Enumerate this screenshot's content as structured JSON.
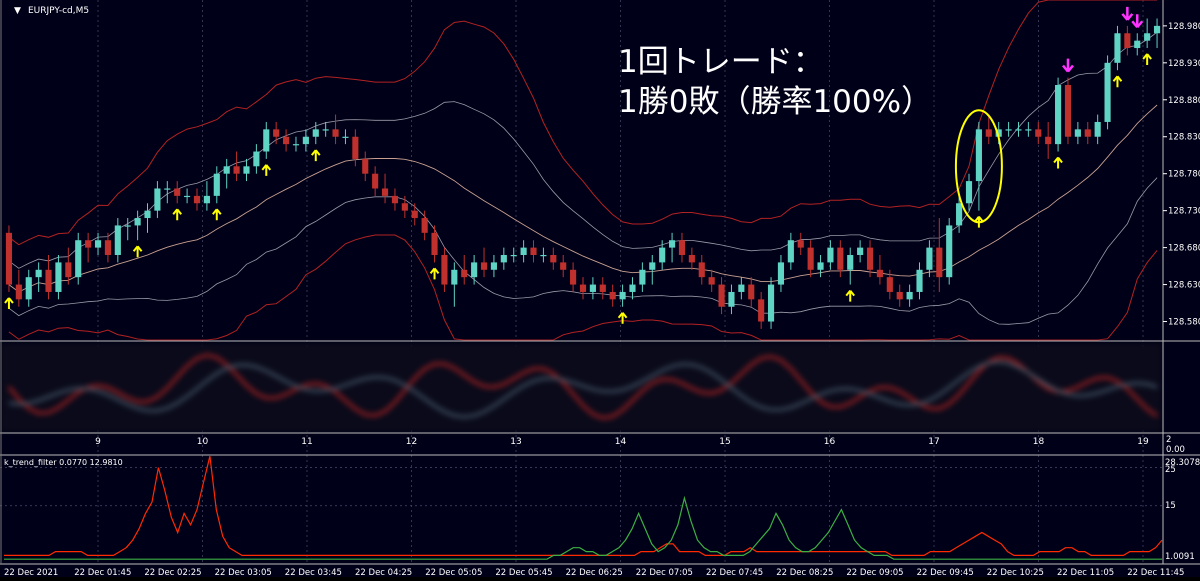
{
  "window": {
    "symbol_label": "EURJPY-cd,M5",
    "menu_glyph": "▼"
  },
  "annotation": {
    "line1": "1回トレード：",
    "line2": "1勝0敗（勝率100%）"
  },
  "colors": {
    "background": "#000018",
    "grid": "#4a4a6a",
    "bull": "#5fd3c4",
    "bear": "#c0302c",
    "band_outer": "#b22222",
    "band_inner": "#9a9aa8",
    "mid_band": "#c8a090",
    "arrow_yellow": "#ffff00",
    "arrow_magenta": "#ff33ff",
    "ellipse": "#ffff00",
    "axis_text": "#ffffff",
    "trend_red": "#ff2a00",
    "trend_green": "#3cb043"
  },
  "price_axis": {
    "ticks": [
      "128.980",
      "128.930",
      "128.880",
      "128.830",
      "128.780",
      "128.730",
      "128.680",
      "128.630",
      "128.580"
    ]
  },
  "osc_axis": {
    "ticks": [
      "2",
      "0.00"
    ]
  },
  "osc_x_labels": [
    "9",
    "10",
    "11",
    "12",
    "13",
    "14",
    "15",
    "16",
    "17",
    "18",
    "19"
  ],
  "trend_panel": {
    "label": "k_trend_filter 0.0770 12.9810",
    "ticks": [
      "28.3078",
      "25",
      "15",
      "1.0091"
    ]
  },
  "time_labels": [
    "22 Dec 2021",
    "22 Dec 01:45",
    "22 Dec 02:25",
    "22 Dec 03:05",
    "22 Dec 03:45",
    "22 Dec 04:25",
    "22 Dec 05:05",
    "22 Dec 05:45",
    "22 Dec 06:25",
    "22 Dec 07:05",
    "22 Dec 07:45",
    "22 Dec 08:25",
    "22 Dec 09:05",
    "22 Dec 09:45",
    "22 Dec 10:25",
    "22 Dec 11:05",
    "22 Dec 11:45"
  ],
  "chart_data": [
    {
      "type": "candlestick",
      "title": "EURJPY-cd,M5",
      "ylim": [
        128.555,
        129.015
      ],
      "y_ticks": [
        128.98,
        128.93,
        128.88,
        128.83,
        128.78,
        128.73,
        128.68,
        128.63,
        128.58
      ],
      "candles": [
        [
          128.7,
          128.71,
          128.62,
          128.63
        ],
        [
          128.63,
          128.65,
          128.6,
          128.61
        ],
        [
          128.61,
          128.65,
          128.6,
          128.64
        ],
        [
          128.64,
          128.66,
          128.62,
          128.65
        ],
        [
          128.65,
          128.67,
          128.61,
          128.62
        ],
        [
          128.62,
          128.67,
          128.61,
          128.66
        ],
        [
          128.66,
          128.68,
          128.63,
          128.64
        ],
        [
          128.64,
          128.7,
          128.63,
          128.69
        ],
        [
          128.69,
          128.7,
          128.66,
          128.68
        ],
        [
          128.68,
          128.7,
          128.67,
          128.69
        ],
        [
          128.69,
          128.7,
          128.66,
          128.67
        ],
        [
          128.67,
          128.72,
          128.66,
          128.71
        ],
        [
          128.71,
          128.72,
          128.69,
          128.71
        ],
        [
          128.71,
          128.73,
          128.69,
          128.72
        ],
        [
          128.72,
          128.74,
          128.7,
          128.73
        ],
        [
          128.73,
          128.77,
          128.72,
          128.76
        ],
        [
          128.76,
          128.77,
          128.74,
          128.76
        ],
        [
          128.76,
          128.77,
          128.74,
          128.75
        ],
        [
          128.75,
          128.76,
          128.74,
          128.75
        ],
        [
          128.75,
          128.76,
          128.73,
          128.74
        ],
        [
          128.74,
          128.77,
          128.73,
          128.75
        ],
        [
          128.75,
          128.79,
          128.74,
          128.78
        ],
        [
          128.78,
          128.8,
          128.76,
          128.79
        ],
        [
          128.79,
          128.81,
          128.77,
          128.78
        ],
        [
          128.78,
          128.8,
          128.77,
          128.79
        ],
        [
          128.79,
          128.82,
          128.78,
          128.81
        ],
        [
          128.81,
          128.85,
          128.8,
          128.84
        ],
        [
          128.84,
          128.85,
          128.82,
          128.83
        ],
        [
          128.83,
          128.84,
          128.81,
          128.82
        ],
        [
          128.82,
          128.83,
          128.81,
          128.82
        ],
        [
          128.82,
          128.84,
          128.81,
          128.83
        ],
        [
          128.83,
          128.85,
          128.82,
          128.84
        ],
        [
          128.84,
          128.85,
          128.83,
          128.84
        ],
        [
          128.84,
          128.86,
          128.82,
          128.83
        ],
        [
          128.83,
          128.84,
          128.82,
          128.83
        ],
        [
          128.83,
          128.84,
          128.79,
          128.8
        ],
        [
          128.8,
          128.81,
          128.77,
          128.78
        ],
        [
          128.78,
          128.79,
          128.75,
          128.76
        ],
        [
          128.76,
          128.78,
          128.74,
          128.75
        ],
        [
          128.75,
          128.76,
          128.73,
          128.74
        ],
        [
          128.74,
          128.75,
          128.72,
          128.73
        ],
        [
          128.73,
          128.74,
          128.71,
          128.72
        ],
        [
          128.72,
          128.73,
          128.69,
          128.7
        ],
        [
          128.7,
          128.71,
          128.66,
          128.67
        ],
        [
          128.67,
          128.68,
          128.62,
          128.63
        ],
        [
          128.63,
          128.66,
          128.6,
          128.65
        ],
        [
          128.65,
          128.67,
          128.63,
          128.64
        ],
        [
          128.64,
          128.67,
          128.63,
          128.66
        ],
        [
          128.66,
          128.68,
          128.64,
          128.65
        ],
        [
          128.65,
          128.67,
          128.64,
          128.66
        ],
        [
          128.66,
          128.68,
          128.65,
          128.67
        ],
        [
          128.67,
          128.68,
          128.66,
          128.67
        ],
        [
          128.67,
          128.69,
          128.66,
          128.68
        ],
        [
          128.68,
          128.69,
          128.66,
          128.67
        ],
        [
          128.67,
          128.68,
          128.66,
          128.67
        ],
        [
          128.67,
          128.68,
          128.65,
          128.66
        ],
        [
          128.66,
          128.67,
          128.64,
          128.65
        ],
        [
          128.65,
          128.66,
          128.62,
          128.63
        ],
        [
          128.63,
          128.64,
          128.61,
          128.62
        ],
        [
          128.62,
          128.64,
          128.61,
          128.63
        ],
        [
          128.63,
          128.64,
          128.61,
          128.62
        ],
        [
          128.62,
          128.63,
          128.6,
          128.61
        ],
        [
          128.61,
          128.63,
          128.6,
          128.62
        ],
        [
          128.62,
          128.64,
          128.61,
          128.63
        ],
        [
          128.63,
          128.66,
          128.62,
          128.65
        ],
        [
          128.65,
          128.67,
          128.63,
          128.66
        ],
        [
          128.66,
          128.69,
          128.65,
          128.68
        ],
        [
          128.68,
          128.7,
          128.66,
          128.69
        ],
        [
          128.69,
          128.7,
          128.66,
          128.67
        ],
        [
          128.67,
          128.68,
          128.65,
          128.66
        ],
        [
          128.66,
          128.67,
          128.63,
          128.64
        ],
        [
          128.64,
          128.65,
          128.62,
          128.63
        ],
        [
          128.63,
          128.64,
          128.59,
          128.6
        ],
        [
          128.6,
          128.63,
          128.59,
          128.62
        ],
        [
          128.62,
          128.64,
          128.61,
          128.63
        ],
        [
          128.63,
          128.64,
          128.6,
          128.61
        ],
        [
          128.61,
          128.62,
          128.57,
          128.58
        ],
        [
          128.58,
          128.64,
          128.57,
          128.63
        ],
        [
          128.63,
          128.67,
          128.62,
          128.66
        ],
        [
          128.66,
          128.7,
          128.65,
          128.69
        ],
        [
          128.69,
          128.7,
          128.67,
          128.68
        ],
        [
          128.68,
          128.69,
          128.64,
          128.65
        ],
        [
          128.65,
          128.67,
          128.64,
          128.66
        ],
        [
          128.66,
          128.69,
          128.65,
          128.68
        ],
        [
          128.68,
          128.69,
          128.64,
          128.65
        ],
        [
          128.65,
          128.68,
          128.63,
          128.67
        ],
        [
          128.67,
          128.69,
          128.66,
          128.68
        ],
        [
          128.68,
          128.69,
          128.64,
          128.65
        ],
        [
          128.65,
          128.67,
          128.63,
          128.64
        ],
        [
          128.64,
          128.65,
          128.61,
          128.62
        ],
        [
          128.62,
          128.63,
          128.6,
          128.61
        ],
        [
          128.61,
          128.63,
          128.6,
          128.62
        ],
        [
          128.62,
          128.66,
          128.61,
          128.65
        ],
        [
          128.65,
          128.69,
          128.64,
          128.68
        ],
        [
          128.68,
          128.72,
          128.62,
          128.64
        ],
        [
          128.64,
          128.72,
          128.63,
          128.71
        ],
        [
          128.71,
          128.75,
          128.7,
          128.74
        ],
        [
          128.74,
          128.78,
          128.73,
          128.77
        ],
        [
          128.77,
          128.85,
          128.73,
          128.84
        ],
        [
          128.84,
          128.86,
          128.82,
          128.83
        ],
        [
          128.83,
          128.85,
          128.82,
          128.84
        ],
        [
          128.84,
          128.85,
          128.83,
          128.84
        ],
        [
          128.84,
          128.85,
          128.83,
          128.84
        ],
        [
          128.84,
          128.85,
          128.83,
          128.84
        ],
        [
          128.84,
          128.85,
          128.82,
          128.83
        ],
        [
          128.83,
          128.85,
          128.8,
          128.82
        ],
        [
          128.82,
          128.91,
          128.81,
          128.9
        ],
        [
          128.9,
          128.91,
          128.82,
          128.83
        ],
        [
          128.83,
          128.85,
          128.82,
          128.84
        ],
        [
          128.84,
          128.85,
          128.82,
          128.83
        ],
        [
          128.83,
          128.86,
          128.82,
          128.85
        ],
        [
          128.85,
          128.94,
          128.84,
          128.93
        ],
        [
          128.93,
          128.98,
          128.92,
          128.97
        ],
        [
          128.97,
          128.98,
          128.94,
          128.95
        ],
        [
          128.95,
          128.97,
          128.94,
          128.96
        ],
        [
          128.96,
          128.99,
          128.95,
          128.97
        ],
        [
          128.97,
          128.99,
          128.95,
          128.98
        ]
      ],
      "signals": [
        {
          "index": 0,
          "type": "buy"
        },
        {
          "index": 13,
          "type": "buy"
        },
        {
          "index": 17,
          "type": "buy"
        },
        {
          "index": 21,
          "type": "buy"
        },
        {
          "index": 26,
          "type": "buy"
        },
        {
          "index": 31,
          "type": "buy"
        },
        {
          "index": 43,
          "type": "buy"
        },
        {
          "index": 62,
          "type": "buy"
        },
        {
          "index": 85,
          "type": "buy"
        },
        {
          "index": 98,
          "type": "buy"
        },
        {
          "index": 106,
          "type": "buy"
        },
        {
          "index": 107,
          "type": "sell"
        },
        {
          "index": 112,
          "type": "buy"
        },
        {
          "index": 113,
          "type": "sell"
        },
        {
          "index": 114,
          "type": "sell"
        },
        {
          "index": 115,
          "type": "buy"
        }
      ],
      "highlight_candle_index": 98,
      "indicators": [
        "outer_bands",
        "inner_bands",
        "mid_band"
      ]
    },
    {
      "type": "line",
      "title": "k_trend_filter 0.0770 12.9810",
      "ylim": [
        0,
        28.3078
      ],
      "y_ticks": [
        25,
        15
      ],
      "series": [
        {
          "values": [
            2,
            2,
            2,
            2,
            2,
            2,
            2,
            2,
            3,
            3,
            3,
            3,
            3,
            2,
            2,
            2,
            2,
            2,
            3,
            4,
            6,
            9,
            13,
            16,
            25,
            19,
            12,
            8,
            13,
            10,
            14,
            21,
            28,
            14,
            7,
            4,
            3,
            2,
            2,
            2,
            2,
            2,
            2,
            2,
            2,
            2,
            2,
            2,
            2,
            2,
            2,
            2,
            2,
            2,
            2,
            2,
            2,
            2,
            2,
            2,
            2,
            2,
            2,
            2,
            2,
            2,
            2,
            2,
            2,
            2,
            2,
            2,
            2,
            2,
            2,
            2,
            2,
            2,
            2,
            2,
            2,
            2,
            2,
            2,
            2,
            2,
            2,
            2,
            2,
            2,
            2,
            2,
            2,
            2,
            2,
            2,
            2,
            2,
            2,
            3,
            3,
            3,
            4,
            5,
            5,
            3,
            3,
            3,
            3,
            2,
            2,
            2,
            2,
            3,
            3,
            3,
            4,
            3,
            3,
            3,
            3,
            3,
            3,
            3,
            3,
            3,
            3,
            3,
            3,
            3,
            3,
            3,
            3,
            3,
            3,
            3,
            3,
            3,
            2,
            2,
            2,
            2,
            2,
            2,
            3,
            3,
            3,
            3,
            4,
            5,
            6,
            7,
            8,
            7,
            6,
            5,
            3,
            2,
            2,
            2,
            2,
            3,
            3,
            3,
            3,
            4,
            4,
            3,
            3,
            2,
            2,
            2,
            2,
            2,
            2,
            3,
            3,
            3,
            3,
            4,
            6
          ]
        },
        {
          "values": [
            1,
            1,
            1,
            1,
            1,
            1,
            1,
            1,
            1,
            1,
            1,
            1,
            1,
            1,
            1,
            1,
            1,
            1,
            1,
            1,
            1,
            1,
            1,
            1,
            1,
            1,
            1,
            1,
            1,
            1,
            1,
            1,
            1,
            1,
            1,
            1,
            1,
            1,
            1,
            1,
            1,
            1,
            1,
            1,
            1,
            1,
            1,
            1,
            1,
            1,
            1,
            1,
            1,
            1,
            1,
            1,
            1,
            1,
            1,
            1,
            1,
            1,
            1,
            1,
            1,
            1,
            1,
            1,
            1,
            1,
            1,
            1,
            1,
            1,
            1,
            1,
            1,
            1,
            1,
            1,
            1,
            1,
            1,
            1,
            2,
            2,
            3,
            4,
            4,
            3,
            3,
            2,
            2,
            3,
            4,
            6,
            9,
            13,
            9,
            5,
            3,
            4,
            6,
            10,
            17,
            11,
            6,
            4,
            3,
            3,
            2,
            2,
            2,
            2,
            3,
            5,
            7,
            9,
            13,
            10,
            6,
            4,
            3,
            3,
            4,
            6,
            8,
            11,
            14,
            10,
            6,
            4,
            3,
            2,
            2,
            2,
            1,
            1,
            1,
            1,
            1,
            1,
            1,
            1,
            1,
            1,
            1,
            1,
            1,
            1,
            1,
            1,
            1,
            1,
            1,
            1,
            1,
            1,
            1,
            1,
            1,
            1,
            1,
            1,
            1,
            1,
            1,
            1,
            1,
            1,
            1,
            1,
            1,
            1,
            1,
            1,
            1,
            1
          ]
        }
      ]
    }
  ]
}
